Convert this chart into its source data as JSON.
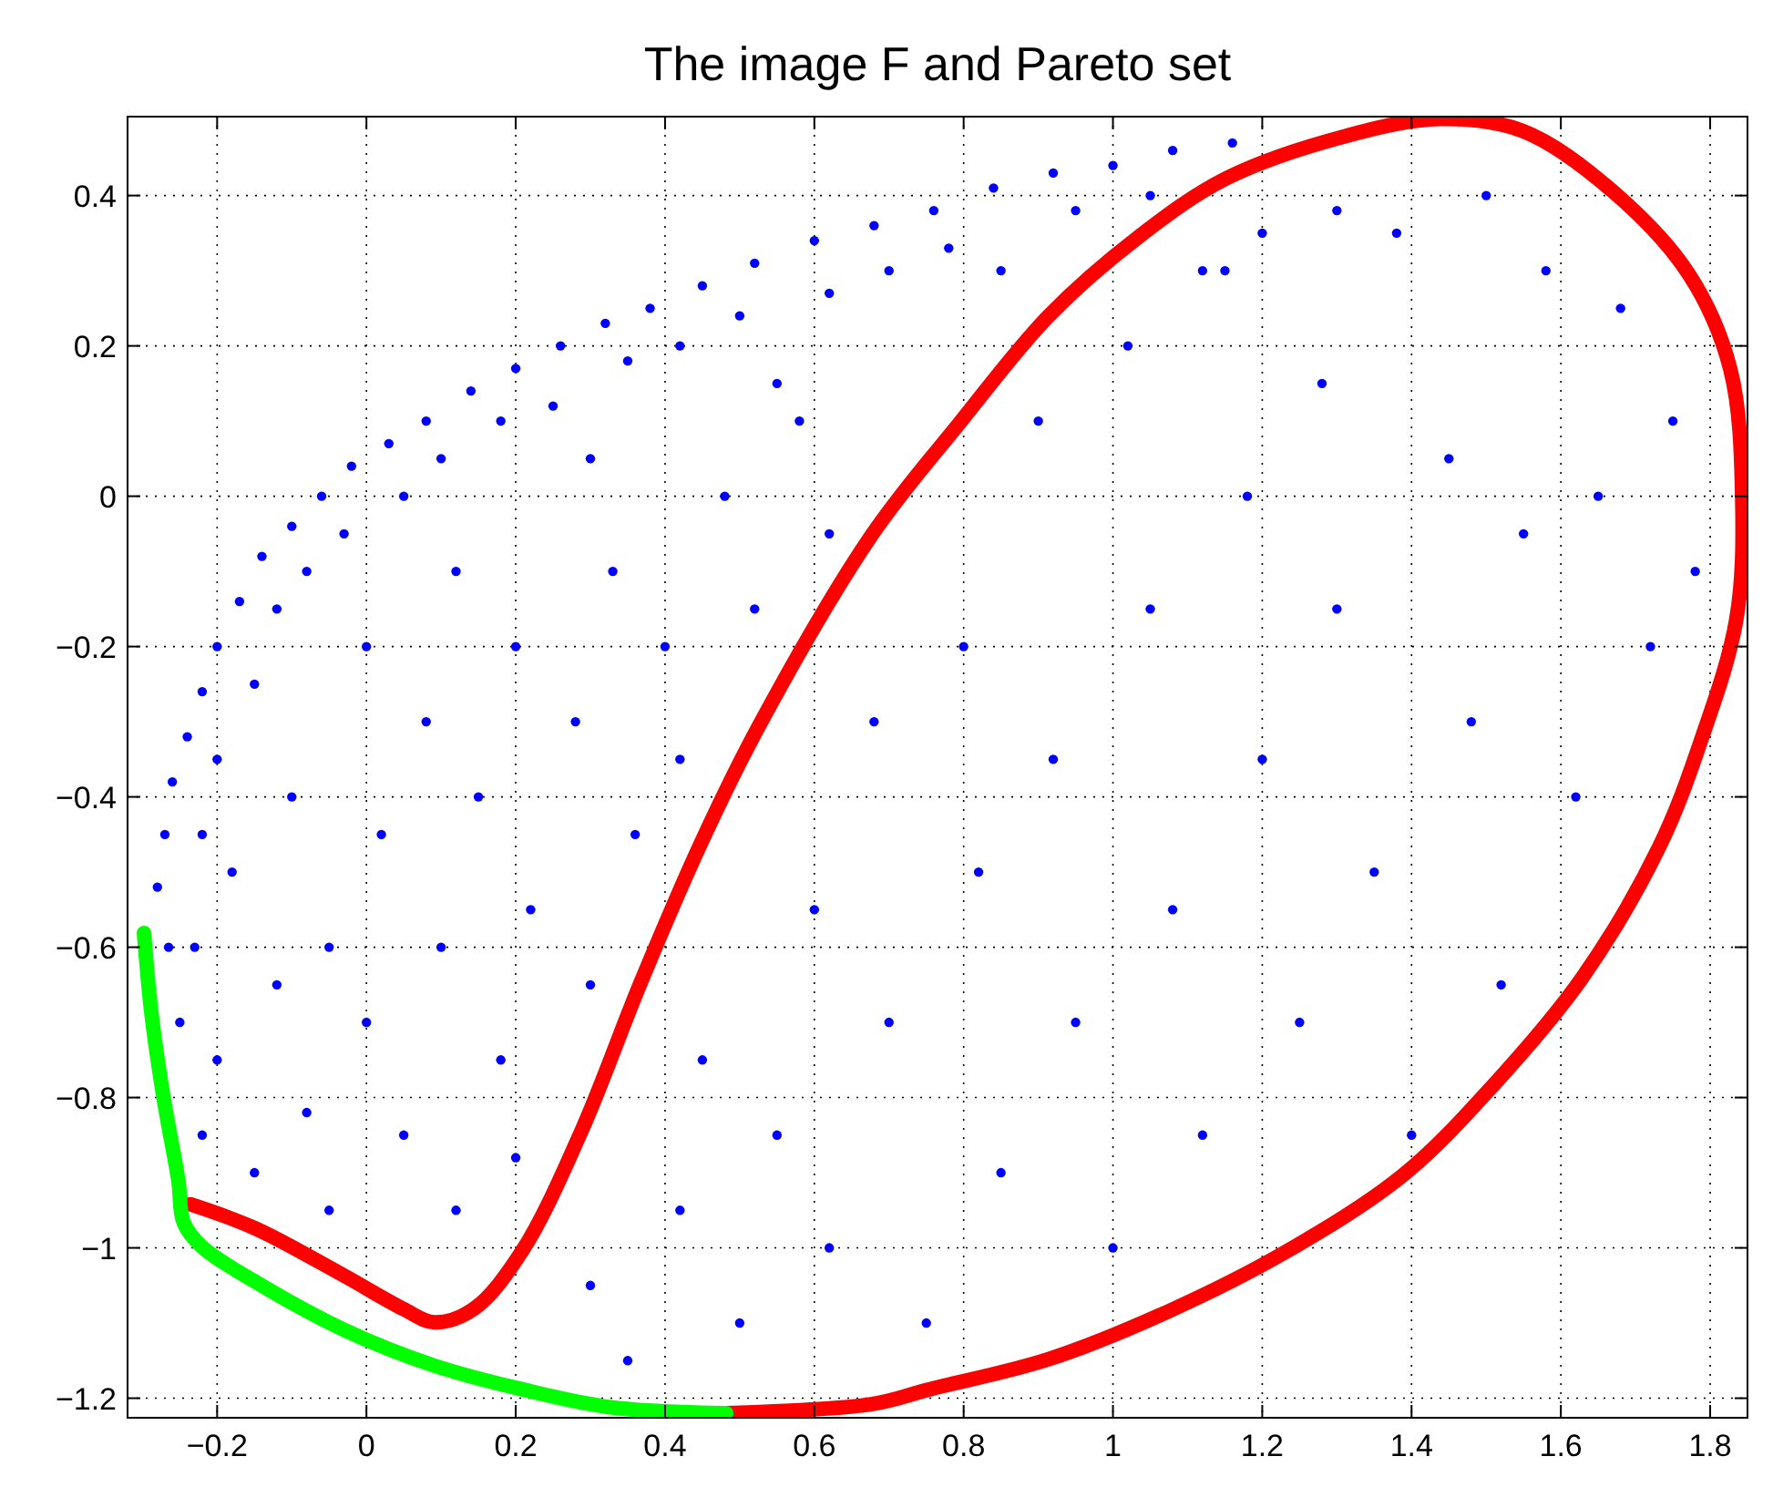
{
  "chart_data": {
    "type": "scatter",
    "title": "The image F and Pareto set",
    "xlim": [
      -0.32,
      1.85
    ],
    "ylim": [
      -1.226,
      0.505
    ],
    "xticks": [
      {
        "value": -0.2,
        "label": "−0.2"
      },
      0,
      0.2,
      0.4,
      0.6,
      0.8,
      1,
      1.2,
      1.4,
      1.6,
      1.8
    ],
    "yticks": [
      {
        "value": -1.2,
        "label": "−1.2"
      },
      {
        "value": -1,
        "label": "−1"
      },
      {
        "value": -0.8,
        "label": "−0.8"
      },
      {
        "value": -0.6,
        "label": "−0.6"
      },
      {
        "value": -0.4,
        "label": "−0.4"
      },
      {
        "value": -0.2,
        "label": "−0.2"
      },
      0,
      0.2,
      0.4
    ],
    "grid": true,
    "series": [
      {
        "type": "scatter",
        "color": "#0000ff",
        "marker": "circle",
        "x": [
          -0.28,
          -0.27,
          -0.26,
          -0.24,
          -0.22,
          -0.2,
          -0.17,
          -0.14,
          -0.1,
          -0.06,
          -0.02,
          0.03,
          0.08,
          0.14,
          0.2,
          0.26,
          0.32,
          0.38,
          0.45,
          0.52,
          0.6,
          0.68,
          0.76,
          0.84,
          0.92,
          1.0,
          1.08,
          1.16,
          -0.265,
          -0.22,
          -0.25,
          -0.23,
          -0.22,
          -0.2,
          -0.18,
          -0.15,
          -0.12,
          -0.1,
          -0.08,
          -0.05,
          -0.03,
          0.0,
          0.05,
          0.1,
          0.12,
          0.18,
          0.25,
          0.3,
          0.35,
          0.42,
          0.5,
          0.55,
          0.62,
          0.7,
          0.78,
          0.85,
          0.95,
          1.05,
          1.12,
          1.2,
          1.3,
          -0.2,
          -0.15,
          -0.12,
          -0.08,
          -0.05,
          0.0,
          0.02,
          0.05,
          0.08,
          0.1,
          0.12,
          0.15,
          0.18,
          0.2,
          0.22,
          0.2,
          0.28,
          0.3,
          0.33,
          0.36,
          0.4,
          0.42,
          0.48,
          0.52,
          0.58,
          0.62,
          0.3,
          0.35,
          0.42,
          0.45,
          0.5,
          0.55,
          0.6,
          0.62,
          0.68,
          0.7,
          0.75,
          0.8,
          0.82,
          0.85,
          0.9,
          0.92,
          0.95,
          1.0,
          1.02,
          1.05,
          1.08,
          1.12,
          1.15,
          1.18,
          1.2,
          1.25,
          1.28,
          1.3,
          1.35,
          1.38,
          1.4,
          1.45,
          1.48,
          1.5,
          1.52,
          1.55,
          1.58,
          1.62,
          1.65,
          1.68,
          1.72,
          1.75,
          1.78
        ],
        "values": [
          -0.52,
          -0.45,
          -0.38,
          -0.32,
          -0.26,
          -0.2,
          -0.14,
          -0.08,
          -0.04,
          0.0,
          0.04,
          0.07,
          0.1,
          0.14,
          0.17,
          0.2,
          0.23,
          0.25,
          0.28,
          0.31,
          0.34,
          0.36,
          0.38,
          0.41,
          0.43,
          0.44,
          0.46,
          0.47,
          -0.6,
          -0.85,
          -0.7,
          -0.6,
          -0.45,
          -0.35,
          -0.5,
          -0.25,
          -0.15,
          -0.4,
          -0.1,
          -0.6,
          -0.05,
          -0.2,
          0.0,
          0.05,
          -0.1,
          0.1,
          0.12,
          0.05,
          0.18,
          0.2,
          0.24,
          0.15,
          0.27,
          0.3,
          0.33,
          0.3,
          0.38,
          0.4,
          0.3,
          0.35,
          0.38,
          -0.75,
          -0.9,
          -0.65,
          -0.82,
          -0.95,
          -0.7,
          -0.45,
          -0.85,
          -0.3,
          -0.6,
          -0.95,
          -0.4,
          -0.75,
          -0.2,
          -0.55,
          -0.88,
          -0.3,
          -0.65,
          -0.1,
          -0.45,
          -0.2,
          -0.35,
          0.0,
          -0.15,
          0.1,
          -0.05,
          -1.05,
          -1.15,
          -0.95,
          -0.75,
          -1.1,
          -0.85,
          -0.55,
          -1.0,
          -0.3,
          -0.7,
          -1.1,
          -0.2,
          -0.5,
          -0.9,
          0.1,
          -0.35,
          -0.7,
          -1.0,
          0.2,
          -0.15,
          -0.55,
          -0.85,
          0.3,
          0.0,
          -0.35,
          -0.7,
          0.15,
          -0.15,
          -0.5,
          0.35,
          -0.85,
          0.05,
          -0.3,
          0.4,
          -0.65,
          -0.05,
          0.3,
          -0.4,
          0.0,
          0.25,
          -0.2,
          0.1,
          -0.1
        ]
      },
      {
        "type": "line",
        "color": "#ff0000",
        "marker": "none",
        "line_style": "solid",
        "x": [
          -0.236,
          -0.149,
          -0.03,
          0.049,
          0.091,
          0.144,
          0.208,
          0.287,
          0.367,
          0.446,
          0.525,
          0.676,
          0.795,
          0.914,
          1.033,
          1.152,
          1.311,
          1.438,
          1.549,
          1.668,
          1.771,
          1.827,
          1.843,
          1.835,
          1.787,
          1.732,
          1.629,
          1.51,
          1.39,
          1.232,
          1.073,
          0.914,
          0.755,
          0.676,
          0.482
        ],
        "values": [
          -0.942,
          -0.974,
          -1.037,
          -1.081,
          -1.099,
          -1.081,
          -1.005,
          -0.847,
          -0.648,
          -0.466,
          -0.307,
          -0.053,
          0.098,
          0.24,
          0.344,
          0.423,
          0.479,
          0.502,
          0.486,
          0.407,
          0.296,
          0.169,
          -0.005,
          -0.164,
          -0.327,
          -0.466,
          -0.64,
          -0.783,
          -0.902,
          -1.005,
          -1.085,
          -1.148,
          -1.188,
          -1.208,
          -1.22
        ]
      },
      {
        "type": "line",
        "color": "#00ff00",
        "marker": "none",
        "line_style": "solid",
        "x": [
          -0.298,
          -0.288,
          -0.272,
          -0.252,
          -0.245,
          -0.221,
          -0.149,
          -0.03,
          0.089,
          0.208,
          0.327,
          0.482
        ],
        "values": [
          -0.581,
          -0.688,
          -0.799,
          -0.91,
          -0.966,
          -0.998,
          -1.045,
          -1.109,
          -1.156,
          -1.188,
          -1.212,
          -1.22
        ]
      }
    ]
  }
}
